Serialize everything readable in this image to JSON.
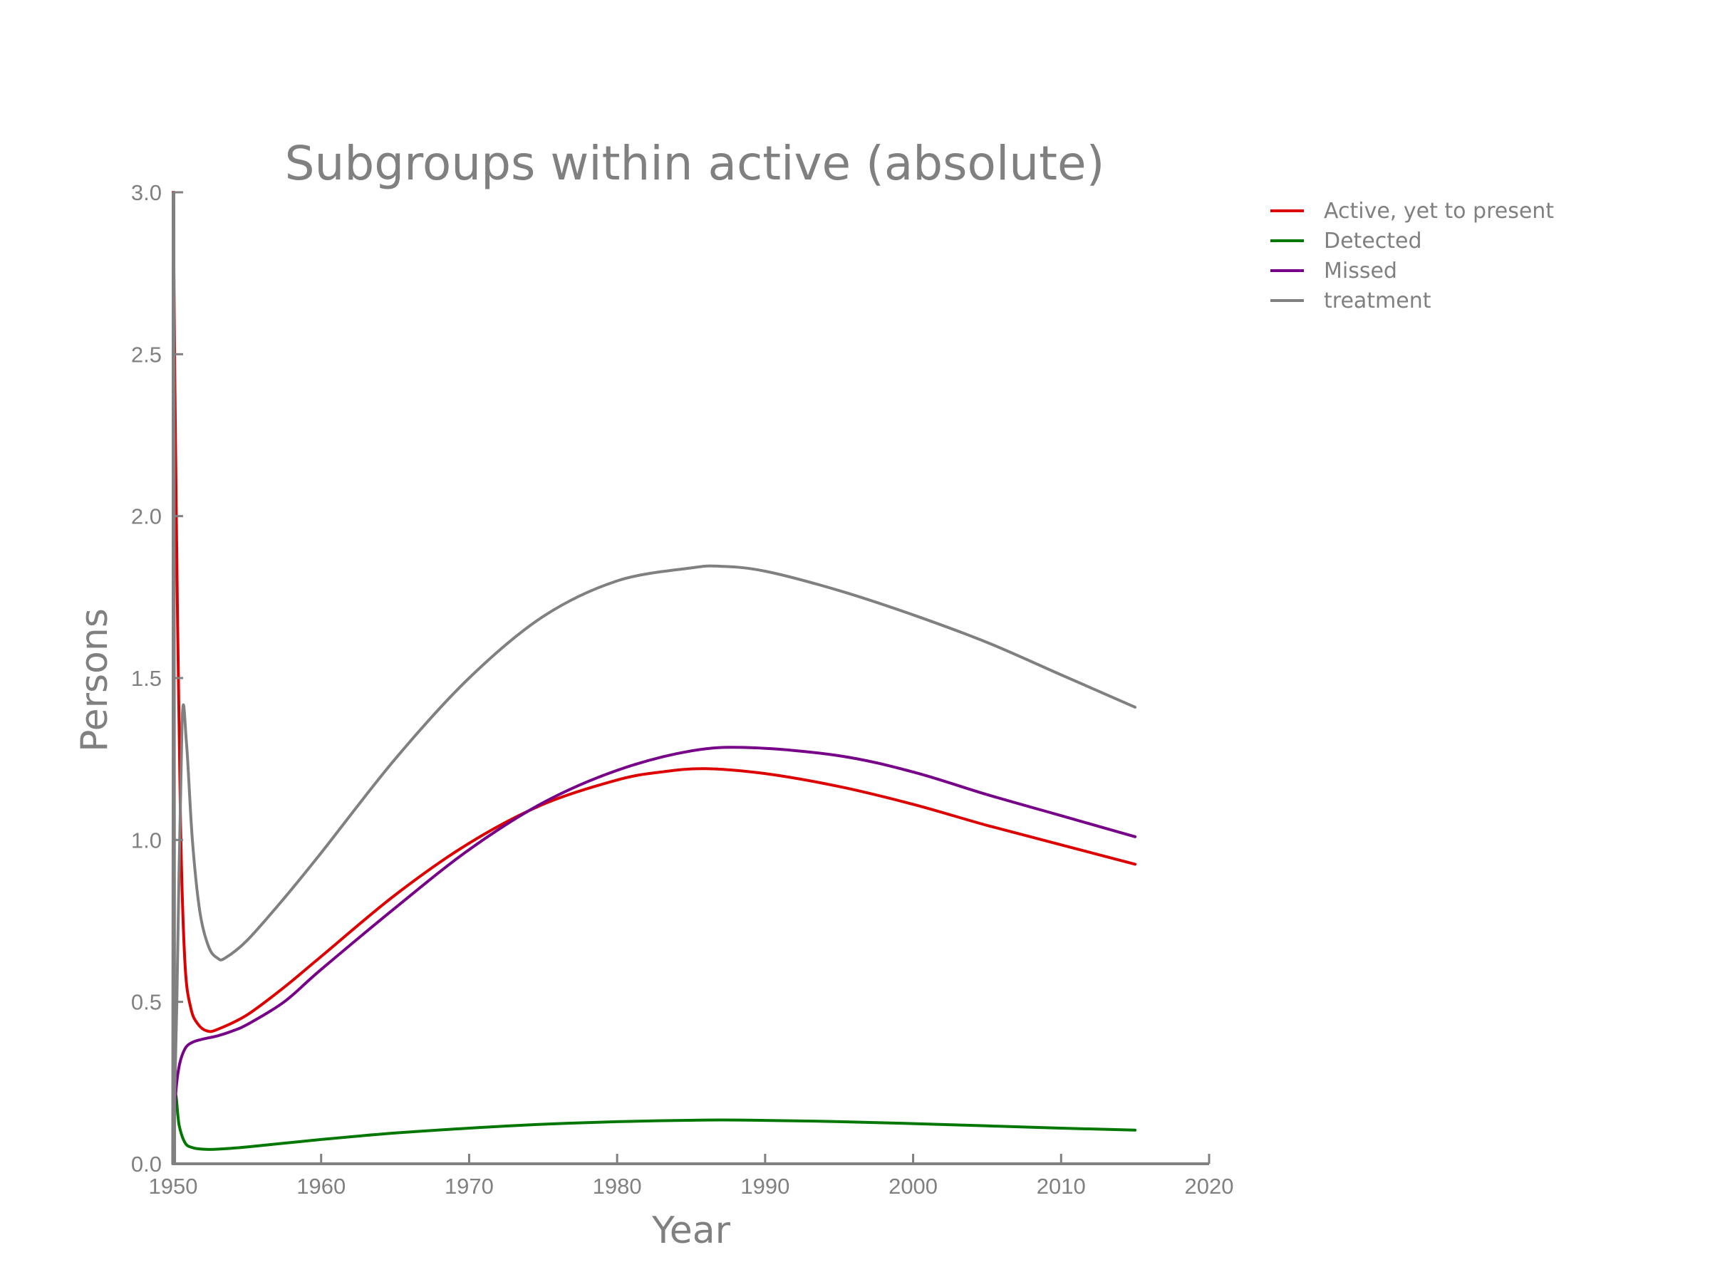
{
  "chart_data": {
    "type": "line",
    "title": "Subgroups within active (absolute)",
    "xlabel": "Year",
    "ylabel": "Persons",
    "xlim": [
      1950,
      2020
    ],
    "ylim": [
      0,
      3.0
    ],
    "xticks": [
      "1950",
      "1960",
      "1970",
      "1980",
      "1990",
      "2000",
      "2010",
      "2020"
    ],
    "yticks": [
      "0.0",
      "0.5",
      "1.0",
      "1.5",
      "2.0",
      "2.5",
      "3.0"
    ],
    "grid": false,
    "legend_position": "upper-right-outside",
    "series": [
      {
        "name": "Active, yet to present",
        "color": "#dd0000",
        "x": [
          1950,
          1950.2,
          1950.5,
          1950.8,
          1951.2,
          1951.7,
          1952.3,
          1953,
          1955,
          1957.5,
          1960,
          1965,
          1970,
          1975,
          1980,
          1983,
          1986,
          1990,
          1995,
          2000,
          2005,
          2010,
          2015
        ],
        "y": [
          3.0,
          2.05,
          1.05,
          0.62,
          0.48,
          0.43,
          0.41,
          0.415,
          0.46,
          0.545,
          0.64,
          0.83,
          0.99,
          1.11,
          1.185,
          1.21,
          1.22,
          1.205,
          1.165,
          1.11,
          1.045,
          0.985,
          0.925
        ]
      },
      {
        "name": "Detected",
        "color": "#007700",
        "x": [
          1950,
          1950.15,
          1950.4,
          1950.8,
          1951.3,
          1952,
          1953,
          1955,
          1960,
          1965,
          1970,
          1975,
          1980,
          1986,
          1990,
          1995,
          2000,
          2005,
          2010,
          2015
        ],
        "y": [
          0.0,
          0.21,
          0.12,
          0.065,
          0.05,
          0.045,
          0.045,
          0.052,
          0.075,
          0.095,
          0.11,
          0.122,
          0.13,
          0.135,
          0.134,
          0.13,
          0.124,
          0.117,
          0.11,
          0.104
        ]
      },
      {
        "name": "Missed",
        "color": "#770088",
        "x": [
          1950,
          1950.15,
          1950.4,
          1950.8,
          1951.3,
          1952,
          1953,
          1954,
          1955,
          1957.5,
          1960,
          1965,
          1970,
          1975,
          1980,
          1985,
          1989,
          1995,
          2000,
          2005,
          2010,
          2015
        ],
        "y": [
          0.0,
          0.2,
          0.3,
          0.355,
          0.375,
          0.385,
          0.395,
          0.41,
          0.43,
          0.5,
          0.6,
          0.79,
          0.97,
          1.115,
          1.215,
          1.275,
          1.285,
          1.26,
          1.21,
          1.14,
          1.075,
          1.01
        ]
      },
      {
        "name": "treatment",
        "color": "#808080",
        "x": [
          1950,
          1950.25,
          1950.6,
          1950.9,
          1951.3,
          1951.8,
          1952.4,
          1953,
          1953.5,
          1955,
          1957.5,
          1960,
          1965,
          1970,
          1975,
          1980,
          1985,
          1987,
          1990,
          1995,
          2000,
          2005,
          2010,
          2015
        ],
        "y": [
          0.0,
          0.5,
          1.36,
          1.3,
          1.0,
          0.78,
          0.67,
          0.635,
          0.635,
          0.69,
          0.82,
          0.96,
          1.25,
          1.5,
          1.69,
          1.8,
          1.84,
          1.845,
          1.83,
          1.77,
          1.695,
          1.61,
          1.51,
          1.41
        ]
      }
    ],
    "spikes": [
      {
        "series": "Active, yet to present",
        "x": [
          1950,
          1950.05
        ],
        "y": [
          0.0,
          3.0
        ]
      },
      {
        "series": "treatment",
        "x": [
          1949.97,
          1950.05,
          1950.1
        ],
        "y": [
          0.0,
          3.0,
          0.0
        ]
      }
    ]
  }
}
